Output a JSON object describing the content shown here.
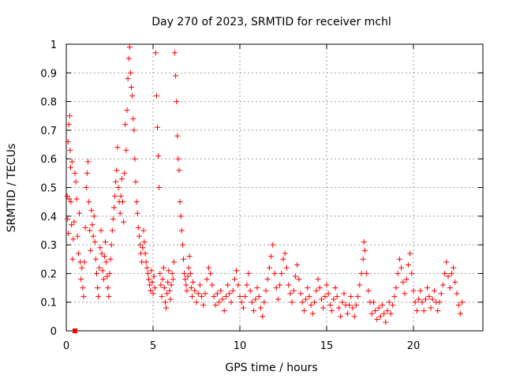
{
  "chart_data": {
    "type": "scatter",
    "title": "Day 270 of 2023, SRMTID for receiver mchl",
    "xlabel": "GPS time / hours",
    "ylabel": "SRMTID / TECUs",
    "xlim": [
      0,
      24
    ],
    "ylim": [
      0,
      1
    ],
    "xticks": [
      0,
      5,
      10,
      15,
      20
    ],
    "xtick_labels": [
      "0",
      "5",
      "10",
      "15",
      "20"
    ],
    "yticks": [
      0,
      0.1,
      0.2,
      0.3,
      0.4,
      0.5,
      0.6,
      0.7,
      0.8,
      0.9,
      1
    ],
    "ytick_labels": [
      "0",
      "0.1",
      "0.2",
      "0.3",
      "0.4",
      "0.5",
      "0.6",
      "0.7",
      "0.8",
      "0.9",
      "1"
    ],
    "grid": true,
    "marker": "+",
    "color": "#ff0000",
    "series": [
      {
        "name": "SRMTID",
        "points": [
          [
            0.05,
            0.47
          ],
          [
            0.08,
            0.39
          ],
          [
            0.1,
            0.66
          ],
          [
            0.12,
            0.34
          ],
          [
            0.15,
            0.72
          ],
          [
            0.17,
            0.46
          ],
          [
            0.2,
            0.75
          ],
          [
            0.22,
            0.63
          ],
          [
            0.25,
            0.57
          ],
          [
            0.27,
            0.45
          ],
          [
            0.3,
            0.37
          ],
          [
            0.33,
            0.59
          ],
          [
            0.36,
            0.25
          ],
          [
            0.4,
            0.32
          ],
          [
            0.45,
            0.38
          ],
          [
            0.5,
            0.55
          ],
          [
            0.55,
            0.52
          ],
          [
            0.6,
            0.46
          ],
          [
            0.65,
            0.33
          ],
          [
            0.7,
            0.27
          ],
          [
            0.75,
            0.41
          ],
          [
            0.8,
            0.24
          ],
          [
            0.85,
            0.18
          ],
          [
            0.9,
            0.22
          ],
          [
            0.95,
            0.15
          ],
          [
            1.0,
            0.12
          ],
          [
            1.05,
            0.24
          ],
          [
            1.1,
            0.36
          ],
          [
            1.15,
            0.5
          ],
          [
            1.2,
            0.55
          ],
          [
            1.25,
            0.59
          ],
          [
            1.3,
            0.45
          ],
          [
            1.35,
            0.35
          ],
          [
            1.4,
            0.28
          ],
          [
            1.45,
            0.42
          ],
          [
            1.5,
            0.37
          ],
          [
            1.55,
            0.33
          ],
          [
            1.6,
            0.4
          ],
          [
            1.65,
            0.31
          ],
          [
            1.7,
            0.25
          ],
          [
            1.75,
            0.2
          ],
          [
            1.8,
            0.15
          ],
          [
            1.85,
            0.12
          ],
          [
            1.9,
            0.22
          ],
          [
            1.95,
            0.29
          ],
          [
            2.0,
            0.35
          ],
          [
            2.05,
            0.27
          ],
          [
            2.1,
            0.21
          ],
          [
            2.15,
            0.18
          ],
          [
            2.2,
            0.26
          ],
          [
            2.25,
            0.31
          ],
          [
            2.3,
            0.24
          ],
          [
            2.35,
            0.19
          ],
          [
            2.4,
            0.15
          ],
          [
            2.45,
            0.12
          ],
          [
            2.5,
            0.2
          ],
          [
            2.55,
            0.25
          ],
          [
            2.6,
            0.3
          ],
          [
            2.65,
            0.35
          ],
          [
            2.7,
            0.39
          ],
          [
            2.75,
            0.43
          ],
          [
            2.8,
            0.47
          ],
          [
            2.85,
            0.52
          ],
          [
            2.9,
            0.56
          ],
          [
            2.95,
            0.64
          ],
          [
            3.0,
            0.5
          ],
          [
            3.05,
            0.45
          ],
          [
            3.1,
            0.41
          ],
          [
            3.15,
            0.47
          ],
          [
            3.2,
            0.53
          ],
          [
            3.25,
            0.45
          ],
          [
            3.3,
            0.38
          ],
          [
            3.35,
            0.55
          ],
          [
            3.4,
            0.72
          ],
          [
            3.45,
            0.63
          ],
          [
            3.5,
            0.77
          ],
          [
            3.55,
            0.88
          ],
          [
            3.6,
            0.95
          ],
          [
            3.65,
            0.99
          ],
          [
            3.7,
            0.9
          ],
          [
            3.75,
            0.85
          ],
          [
            3.8,
            0.82
          ],
          [
            3.85,
            0.74
          ],
          [
            3.9,
            0.7
          ],
          [
            3.95,
            0.6
          ],
          [
            4.0,
            0.52
          ],
          [
            4.05,
            0.45
          ],
          [
            4.1,
            0.41
          ],
          [
            4.15,
            0.36
          ],
          [
            4.2,
            0.33
          ],
          [
            4.25,
            0.3
          ],
          [
            4.3,
            0.27
          ],
          [
            4.35,
            0.24
          ],
          [
            4.4,
            0.29
          ],
          [
            4.45,
            0.35
          ],
          [
            4.5,
            0.31
          ],
          [
            4.55,
            0.27
          ],
          [
            4.6,
            0.24
          ],
          [
            4.65,
            0.22
          ],
          [
            4.7,
            0.2
          ],
          [
            4.75,
            0.18
          ],
          [
            4.8,
            0.16
          ],
          [
            4.85,
            0.14
          ],
          [
            4.9,
            0.21
          ],
          [
            4.95,
            0.17
          ],
          [
            5.0,
            0.13
          ],
          [
            5.05,
            0.19
          ],
          [
            5.1,
            0.15
          ],
          [
            5.15,
            0.97
          ],
          [
            5.2,
            0.82
          ],
          [
            5.25,
            0.71
          ],
          [
            5.3,
            0.61
          ],
          [
            5.35,
            0.5
          ],
          [
            5.4,
            0.2
          ],
          [
            5.45,
            0.16
          ],
          [
            5.5,
            0.12
          ],
          [
            5.55,
            0.18
          ],
          [
            5.6,
            0.22
          ],
          [
            5.65,
            0.15
          ],
          [
            5.7,
            0.1
          ],
          [
            5.75,
            0.08
          ],
          [
            5.8,
            0.13
          ],
          [
            5.85,
            0.17
          ],
          [
            5.9,
            0.21
          ],
          [
            5.95,
            0.14
          ],
          [
            6.0,
            0.11
          ],
          [
            6.05,
            0.16
          ],
          [
            6.1,
            0.2
          ],
          [
            6.15,
            0.18
          ],
          [
            6.2,
            0.24
          ],
          [
            6.25,
            0.97
          ],
          [
            6.3,
            0.89
          ],
          [
            6.35,
            0.8
          ],
          [
            6.4,
            0.68
          ],
          [
            6.45,
            0.6
          ],
          [
            6.5,
            0.56
          ],
          [
            6.55,
            0.45
          ],
          [
            6.6,
            0.4
          ],
          [
            6.65,
            0.35
          ],
          [
            6.7,
            0.3
          ],
          [
            6.75,
            0.25
          ],
          [
            6.8,
            0.2
          ],
          [
            6.85,
            0.18
          ],
          [
            6.9,
            0.16
          ],
          [
            6.95,
            0.14
          ],
          [
            7.0,
            0.19
          ],
          [
            7.05,
            0.22
          ],
          [
            7.1,
            0.26
          ],
          [
            7.15,
            0.2
          ],
          [
            7.2,
            0.15
          ],
          [
            7.25,
            0.12
          ],
          [
            7.3,
            0.17
          ],
          [
            7.4,
            0.14
          ],
          [
            7.5,
            0.1
          ],
          [
            7.6,
            0.13
          ],
          [
            7.7,
            0.16
          ],
          [
            7.8,
            0.12
          ],
          [
            7.9,
            0.09
          ],
          [
            8.0,
            0.13
          ],
          [
            8.1,
            0.18
          ],
          [
            8.2,
            0.22
          ],
          [
            8.3,
            0.2
          ],
          [
            8.4,
            0.16
          ],
          [
            8.5,
            0.12
          ],
          [
            8.6,
            0.09
          ],
          [
            8.7,
            0.13
          ],
          [
            8.8,
            0.1
          ],
          [
            8.9,
            0.14
          ],
          [
            9.0,
            0.11
          ],
          [
            9.1,
            0.07
          ],
          [
            9.2,
            0.12
          ],
          [
            9.3,
            0.16
          ],
          [
            9.4,
            0.13
          ],
          [
            9.5,
            0.1
          ],
          [
            9.6,
            0.14
          ],
          [
            9.7,
            0.18
          ],
          [
            9.8,
            0.21
          ],
          [
            9.9,
            0.16
          ],
          [
            10.0,
            0.12
          ],
          [
            10.1,
            0.1
          ],
          [
            10.2,
            0.08
          ],
          [
            10.3,
            0.12
          ],
          [
            10.4,
            0.16
          ],
          [
            10.5,
            0.2
          ],
          [
            10.6,
            0.14
          ],
          [
            10.7,
            0.1
          ],
          [
            10.8,
            0.07
          ],
          [
            10.9,
            0.11
          ],
          [
            11.0,
            0.15
          ],
          [
            11.1,
            0.12
          ],
          [
            11.2,
            0.08
          ],
          [
            11.3,
            0.05
          ],
          [
            11.4,
            0.1
          ],
          [
            11.5,
            0.14
          ],
          [
            11.6,
            0.18
          ],
          [
            11.7,
            0.22
          ],
          [
            11.8,
            0.26
          ],
          [
            11.9,
            0.3
          ],
          [
            12.0,
            0.2
          ],
          [
            12.1,
            0.15
          ],
          [
            12.2,
            0.11
          ],
          [
            12.3,
            0.16
          ],
          [
            12.4,
            0.2
          ],
          [
            12.5,
            0.25
          ],
          [
            12.6,
            0.27
          ],
          [
            12.7,
            0.22
          ],
          [
            12.8,
            0.16
          ],
          [
            12.9,
            0.13
          ],
          [
            13.0,
            0.1
          ],
          [
            13.1,
            0.14
          ],
          [
            13.2,
            0.19
          ],
          [
            13.3,
            0.23
          ],
          [
            13.4,
            0.18
          ],
          [
            13.5,
            0.13
          ],
          [
            13.6,
            0.1
          ],
          [
            13.7,
            0.07
          ],
          [
            13.8,
            0.11
          ],
          [
            13.9,
            0.15
          ],
          [
            14.0,
            0.12
          ],
          [
            14.1,
            0.09
          ],
          [
            14.2,
            0.06
          ],
          [
            14.3,
            0.1
          ],
          [
            14.4,
            0.14
          ],
          [
            14.5,
            0.18
          ],
          [
            14.6,
            0.15
          ],
          [
            14.7,
            0.11
          ],
          [
            14.8,
            0.08
          ],
          [
            14.9,
            0.12
          ],
          [
            15.0,
            0.16
          ],
          [
            15.1,
            0.13
          ],
          [
            15.2,
            0.09
          ],
          [
            15.3,
            0.07
          ],
          [
            15.4,
            0.11
          ],
          [
            15.5,
            0.15
          ],
          [
            15.6,
            0.12
          ],
          [
            15.7,
            0.08
          ],
          [
            15.8,
            0.05
          ],
          [
            15.9,
            0.1
          ],
          [
            16.0,
            0.13
          ],
          [
            16.1,
            0.09
          ],
          [
            16.2,
            0.06
          ],
          [
            16.3,
            0.09
          ],
          [
            16.4,
            0.12
          ],
          [
            16.5,
            0.08
          ],
          [
            16.6,
            0.05
          ],
          [
            16.7,
            0.09
          ],
          [
            16.8,
            0.12
          ],
          [
            16.9,
            0.16
          ],
          [
            17.0,
            0.2
          ],
          [
            17.1,
            0.25
          ],
          [
            17.15,
            0.31
          ],
          [
            17.2,
            0.28
          ],
          [
            17.3,
            0.2
          ],
          [
            17.4,
            0.14
          ],
          [
            17.5,
            0.1
          ],
          [
            17.6,
            0.06
          ],
          [
            17.7,
            0.1
          ],
          [
            17.8,
            0.07
          ],
          [
            17.9,
            0.04
          ],
          [
            18.0,
            0.08
          ],
          [
            18.1,
            0.05
          ],
          [
            18.2,
            0.09
          ],
          [
            18.3,
            0.06
          ],
          [
            18.4,
            0.03
          ],
          [
            18.5,
            0.07
          ],
          [
            18.6,
            0.1
          ],
          [
            18.7,
            0.06
          ],
          [
            18.8,
            0.09
          ],
          [
            18.9,
            0.12
          ],
          [
            19.0,
            0.15
          ],
          [
            19.1,
            0.2
          ],
          [
            19.2,
            0.25
          ],
          [
            19.3,
            0.22
          ],
          [
            19.4,
            0.17
          ],
          [
            19.5,
            0.13
          ],
          [
            19.6,
            0.18
          ],
          [
            19.7,
            0.23
          ],
          [
            19.8,
            0.27
          ],
          [
            19.9,
            0.2
          ],
          [
            20.0,
            0.14
          ],
          [
            20.1,
            0.1
          ],
          [
            20.2,
            0.07
          ],
          [
            20.3,
            0.11
          ],
          [
            20.4,
            0.14
          ],
          [
            20.5,
            0.1
          ],
          [
            20.6,
            0.07
          ],
          [
            20.7,
            0.11
          ],
          [
            20.8,
            0.15
          ],
          [
            20.9,
            0.12
          ],
          [
            21.0,
            0.08
          ],
          [
            21.1,
            0.11
          ],
          [
            21.2,
            0.14
          ],
          [
            21.3,
            0.1
          ],
          [
            21.4,
            0.07
          ],
          [
            21.5,
            0.1
          ],
          [
            21.6,
            0.13
          ],
          [
            21.7,
            0.16
          ],
          [
            21.8,
            0.2
          ],
          [
            21.9,
            0.24
          ],
          [
            22.0,
            0.19
          ],
          [
            22.1,
            0.15
          ],
          [
            22.2,
            0.2
          ],
          [
            22.3,
            0.22
          ],
          [
            22.4,
            0.17
          ],
          [
            22.5,
            0.13
          ],
          [
            22.6,
            0.09
          ],
          [
            22.7,
            0.06
          ],
          [
            22.8,
            0.1
          ]
        ]
      }
    ],
    "outlier": {
      "x": 0.5,
      "y": 0.0
    }
  }
}
